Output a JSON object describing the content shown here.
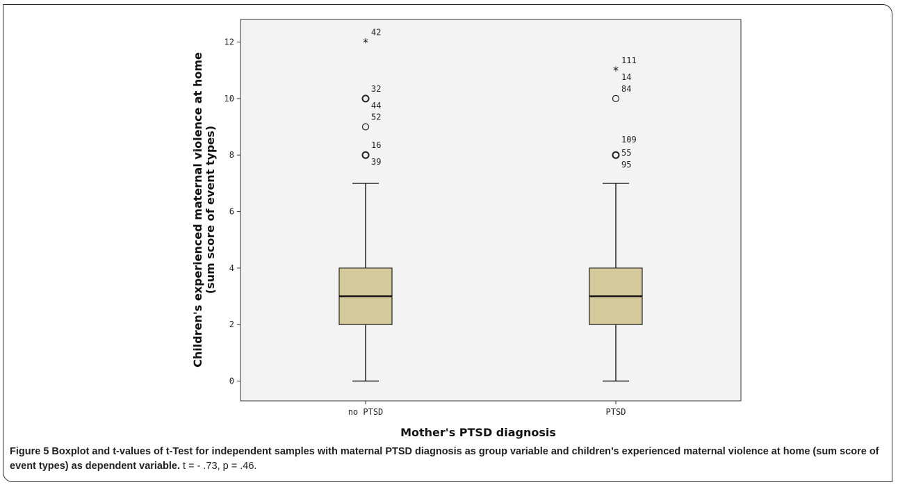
{
  "chart_data": {
    "type": "boxplot",
    "xlabel": "Mother's PTSD diagnosis",
    "ylabel_line1": "Children's experienced maternal violence at home",
    "ylabel_line2": "(sum score of event types)",
    "ylim": [
      -0.7,
      12.8
    ],
    "yticks": [
      "0",
      "2",
      "4",
      "6",
      "8",
      "10",
      "12"
    ],
    "categories": [
      "no PTSD",
      "PTSD"
    ],
    "box_color": "#d4c99a",
    "groups": [
      {
        "name": "no PTSD",
        "min": 0,
        "q1": 2,
        "median": 3,
        "q3": 4,
        "max": 7,
        "outliers": [
          {
            "value": 12,
            "marker": "star",
            "labels": [
              "42"
            ]
          },
          {
            "value": 10,
            "marker": "circle",
            "labels": [
              "32",
              "44"
            ]
          },
          {
            "value": 9,
            "marker": "circle",
            "labels": [
              "52"
            ]
          },
          {
            "value": 8,
            "marker": "circle",
            "labels": [
              "16",
              "39"
            ]
          }
        ]
      },
      {
        "name": "PTSD",
        "min": 0,
        "q1": 2,
        "median": 3,
        "q3": 4,
        "max": 7,
        "outliers": [
          {
            "value": 11,
            "marker": "star",
            "labels": [
              "111",
              "14"
            ]
          },
          {
            "value": 10,
            "marker": "circle",
            "labels": [
              "84"
            ]
          },
          {
            "value": 8,
            "marker": "circle",
            "labels": [
              "109",
              "55",
              "95"
            ]
          }
        ]
      }
    ]
  },
  "caption": {
    "lead": "Figure 5 Boxplot and t-values of t-Test for independent samples with maternal PTSD diagnosis as group variable and children’s experienced maternal violence at home (sum score of event types) as dependent variable.",
    "rest": " t = - .73, p = .46."
  }
}
